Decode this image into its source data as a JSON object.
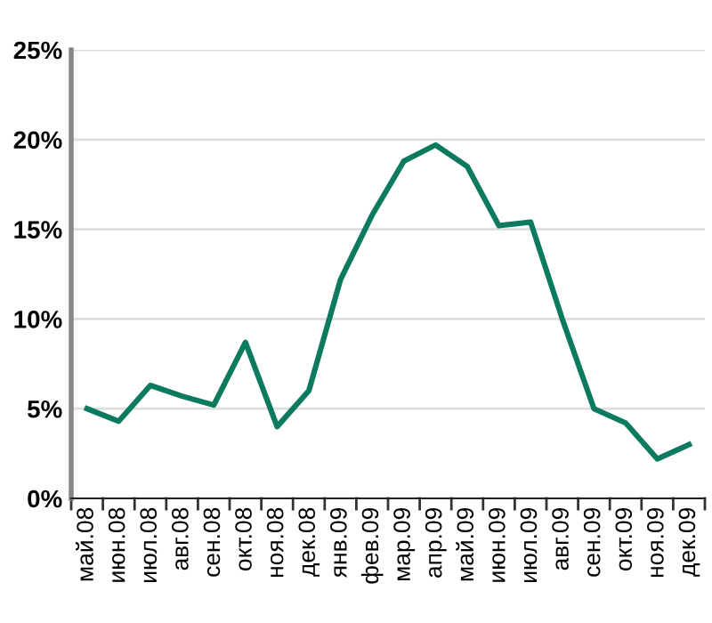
{
  "chart_data": {
    "type": "line",
    "categories": [
      "май.08",
      "июн.08",
      "июл.08",
      "авг.08",
      "сен.08",
      "окт.08",
      "ноя.08",
      "дек.08",
      "янв.09",
      "фев.09",
      "мар.09",
      "апр.09",
      "май.09",
      "июн.09",
      "июл.09",
      "авг.09",
      "сен.09",
      "окт.09",
      "ноя.09",
      "дек.09"
    ],
    "series": [
      {
        "color": "#0b7a5e",
        "values": [
          5.0,
          4.3,
          6.3,
          5.7,
          5.2,
          8.7,
          4.0,
          6.0,
          12.2,
          15.8,
          18.8,
          19.7,
          18.5,
          15.2,
          15.4,
          10.0,
          5.0,
          4.2,
          2.2,
          3.0
        ]
      }
    ],
    "ylim": [
      0,
      25
    ],
    "yticks": [
      {
        "value": 0,
        "label": "0%"
      },
      {
        "value": 5,
        "label": "5%"
      },
      {
        "value": 10,
        "label": "10%"
      },
      {
        "value": 15,
        "label": "15%"
      },
      {
        "value": 20,
        "label": "20%"
      },
      {
        "value": 25,
        "label": "25%"
      }
    ],
    "grid": "y",
    "marker": "none",
    "line_style": "solid",
    "legend": false
  }
}
